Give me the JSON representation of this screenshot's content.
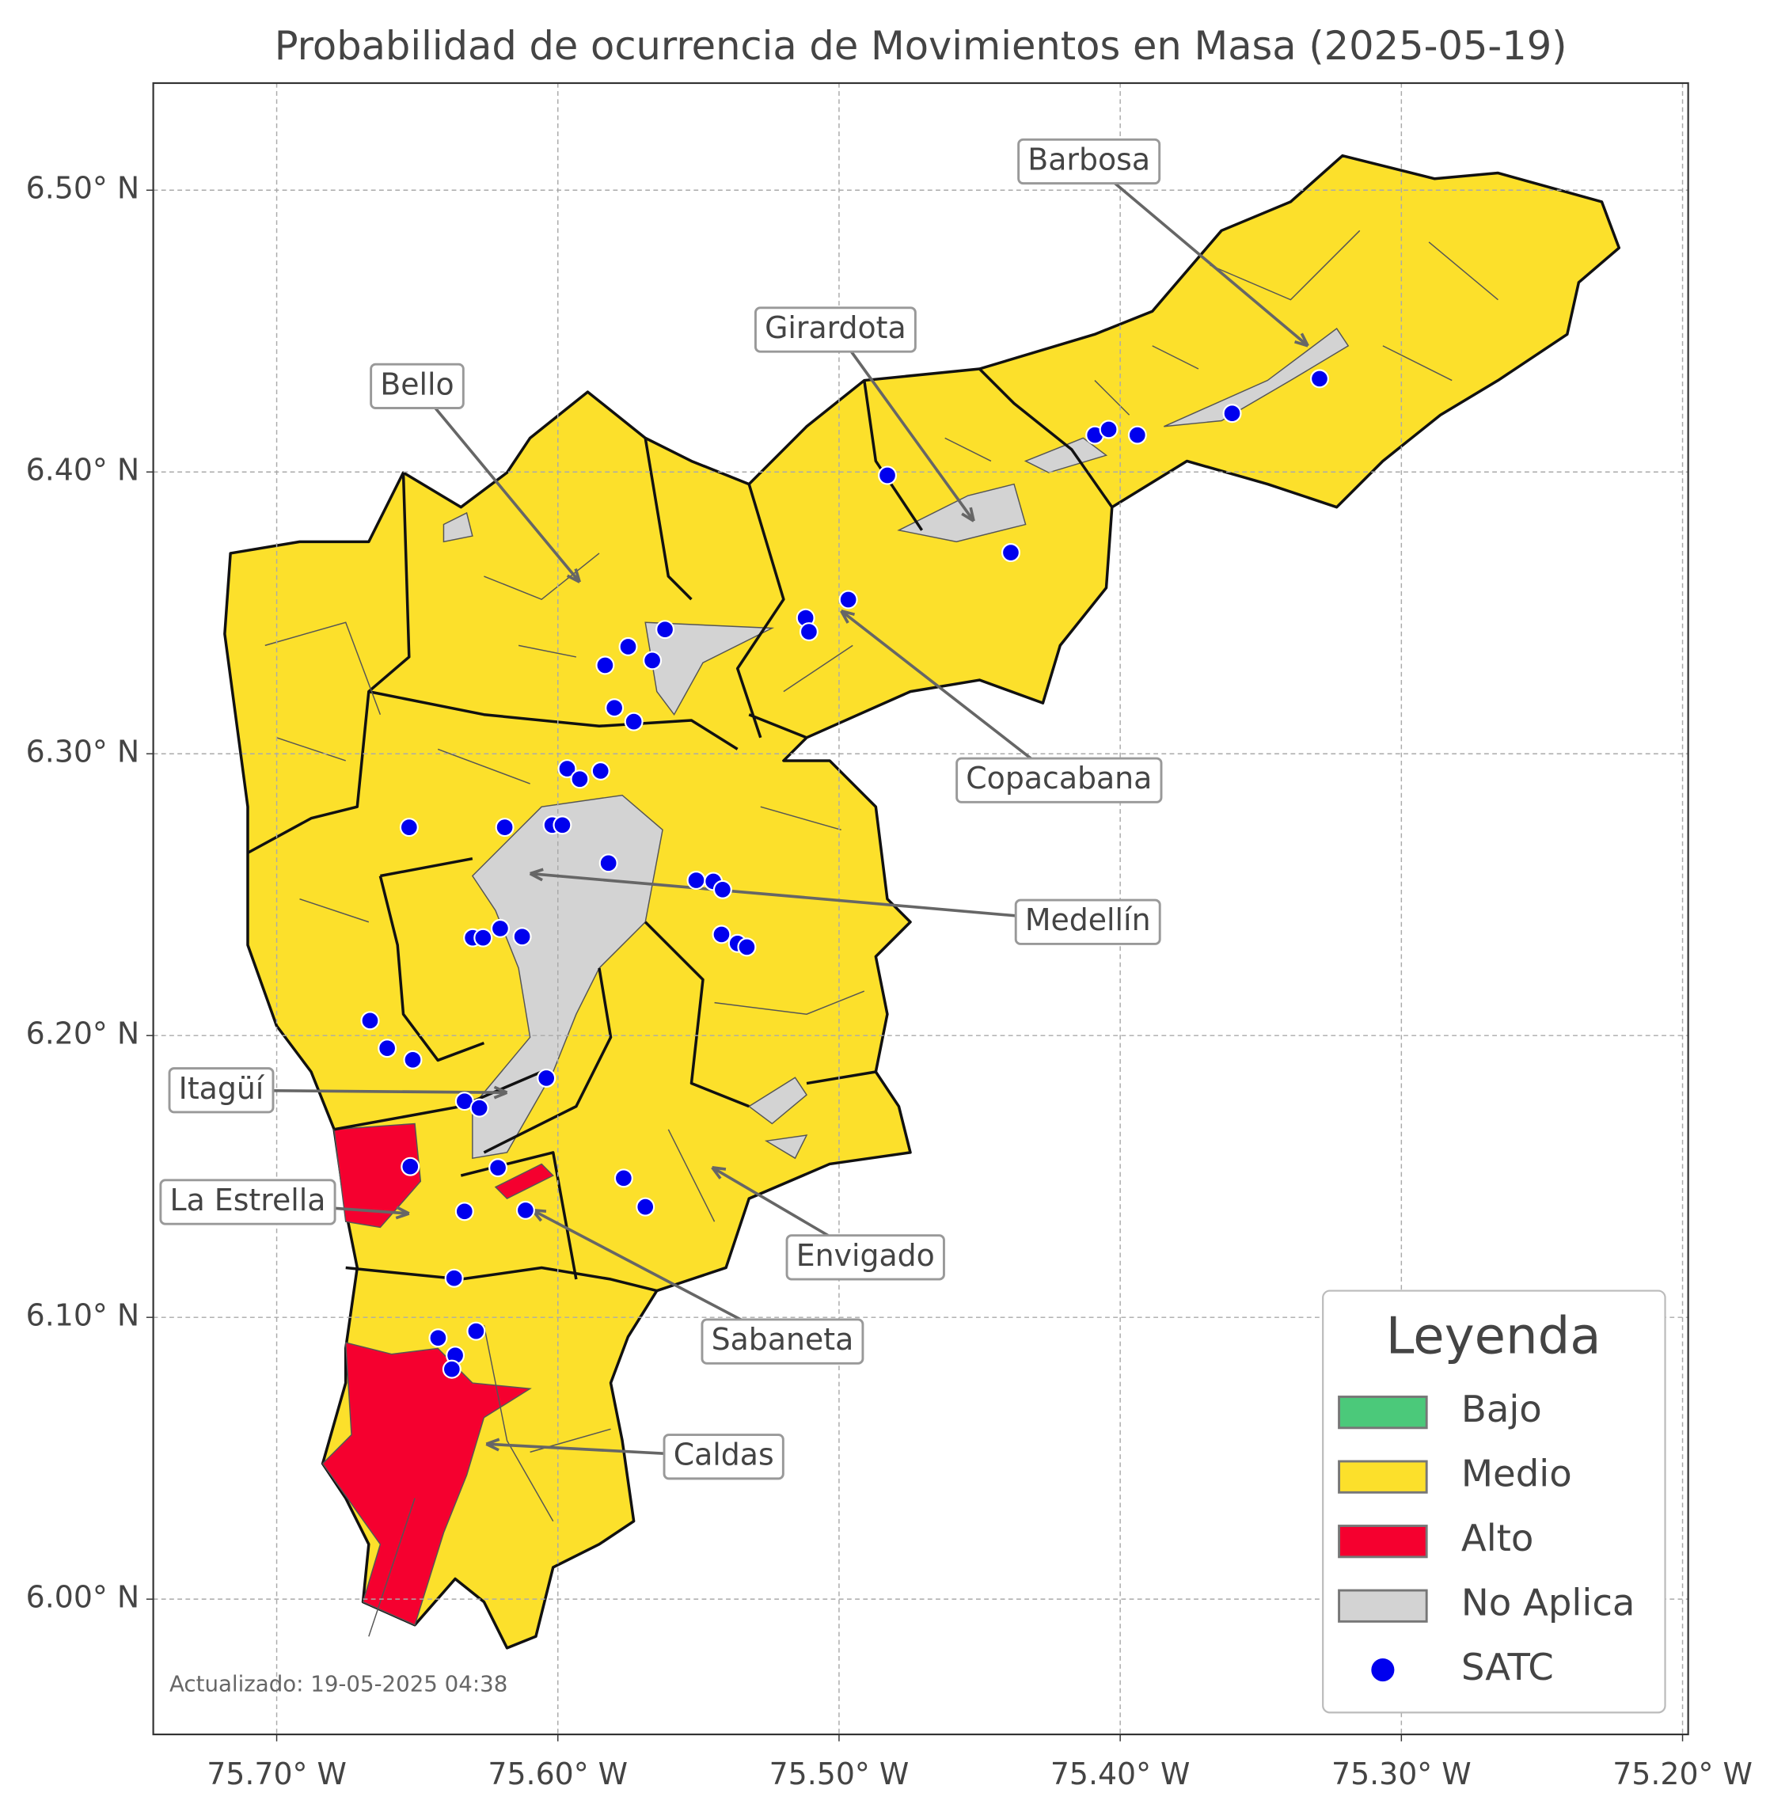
{
  "chart_data": {
    "type": "map",
    "title": "Probabilidad de ocurrencia de Movimientos en Masa (2025-05-19)",
    "xlim": [
      -75.7439,
      -75.198
    ],
    "ylim": [
      5.952,
      6.538
    ],
    "xticks": [
      {
        "value": -75.7,
        "label": "75.70° W"
      },
      {
        "value": -75.6,
        "label": "75.60° W"
      },
      {
        "value": -75.5,
        "label": "75.50° W"
      },
      {
        "value": -75.4,
        "label": "75.40° W"
      },
      {
        "value": -75.3,
        "label": "75.30° W"
      },
      {
        "value": -75.2,
        "label": "75.20° W"
      }
    ],
    "yticks": [
      {
        "value": 6.0,
        "label": "6.00° N"
      },
      {
        "value": 6.1,
        "label": "6.10° N"
      },
      {
        "value": 6.2,
        "label": "6.20° N"
      },
      {
        "value": 6.3,
        "label": "6.30° N"
      },
      {
        "value": 6.4,
        "label": "6.40° N"
      },
      {
        "value": 6.5,
        "label": "6.50° N"
      }
    ],
    "grid": true,
    "annotations": [
      "Barbosa",
      "Girardota",
      "Bello",
      "Copacabana",
      "Medellín",
      "Itagüí",
      "La Estrella",
      "Envigado",
      "Sabaneta",
      "Caldas"
    ],
    "legend": {
      "title": "Leyenda",
      "entries": [
        {
          "label": "Bajo",
          "color": "#4bc97a"
        },
        {
          "label": "Medio",
          "color": "#fce02b"
        },
        {
          "label": "Alto",
          "color": "#f5002f"
        },
        {
          "label": "No Aplica",
          "color": "#d3d3d3"
        },
        {
          "label": "SATC",
          "color": "#0000ee"
        }
      ]
    },
    "points": {
      "lon": [
        -75.4828,
        -75.409,
        -75.4041,
        -75.3939,
        -75.3602,
        -75.3291,
        -75.4389,
        -75.4967,
        -75.5119,
        -75.5107,
        -75.5619,
        -75.575,
        -75.5664,
        -75.5832,
        -75.5799,
        -75.573,
        -75.5967,
        -75.5922,
        -75.5848,
        -75.6529,
        -75.6189,
        -75.602,
        -75.5984,
        -75.582,
        -75.5508,
        -75.5447,
        -75.5414,
        -75.5418,
        -75.5361,
        -75.5328,
        -75.6303,
        -75.6266,
        -75.6205,
        -75.6127,
        -75.6668,
        -75.6607,
        -75.6516,
        -75.6041,
        -75.6332,
        -75.6279,
        -75.6525,
        -75.6213,
        -75.5766,
        -75.5689,
        -75.6332,
        -75.6115,
        -75.6369,
        -75.6426,
        -75.6291,
        -75.6365,
        -75.6377
      ],
      "lat": [
        6.3988,
        6.4131,
        6.4151,
        6.4131,
        6.4208,
        6.4331,
        6.3714,
        6.3547,
        6.3482,
        6.3433,
        6.3441,
        6.338,
        6.3331,
        6.3314,
        6.3163,
        6.3114,
        6.2947,
        6.291,
        6.2939,
        6.2739,
        6.2739,
        6.2747,
        6.2747,
        6.2612,
        6.2551,
        6.2547,
        6.2518,
        6.2359,
        6.2327,
        6.2314,
        6.2347,
        6.2347,
        6.238,
        6.2351,
        6.2053,
        6.1955,
        6.1914,
        6.1849,
        6.1767,
        6.1743,
        6.1535,
        6.1531,
        6.1494,
        6.1392,
        6.1376,
        6.138,
        6.1139,
        6.0927,
        6.0951,
        6.0865,
        6.0816
      ]
    },
    "footnote": "Actualizado: 19-05-2025 04:38"
  }
}
